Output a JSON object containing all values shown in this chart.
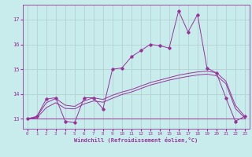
{
  "xlabel": "Windchill (Refroidissement éolien,°C)",
  "bg_color": "#c8ecec",
  "grid_color": "#b0cccc",
  "line_color": "#993399",
  "spine_color": "#993399",
  "xlim": [
    -0.5,
    23.5
  ],
  "ylim": [
    12.6,
    17.6
  ],
  "yticks": [
    13,
    14,
    15,
    16,
    17
  ],
  "xticks": [
    0,
    1,
    2,
    3,
    4,
    5,
    6,
    7,
    8,
    9,
    10,
    11,
    12,
    13,
    14,
    15,
    16,
    17,
    18,
    19,
    20,
    21,
    22,
    23
  ],
  "curve1_x": [
    0,
    1,
    2,
    3,
    4,
    5,
    6,
    7,
    8,
    9,
    10,
    11,
    12,
    13,
    14,
    15,
    16,
    17,
    18,
    19,
    20,
    21,
    22,
    23
  ],
  "curve1_y": [
    13.0,
    13.1,
    13.8,
    13.85,
    12.9,
    12.85,
    13.85,
    13.85,
    13.4,
    15.0,
    15.05,
    15.5,
    15.75,
    16.0,
    15.95,
    15.85,
    17.35,
    16.5,
    17.2,
    15.05,
    14.85,
    13.85,
    12.9,
    13.1
  ],
  "curve2_x": [
    0,
    1,
    2,
    3,
    4,
    5,
    6,
    7,
    8,
    9,
    10,
    11,
    12,
    13,
    14,
    15,
    16,
    17,
    18,
    19,
    20,
    21,
    22,
    23
  ],
  "curve2_y": [
    13.0,
    13.0,
    13.0,
    13.0,
    13.0,
    13.0,
    13.0,
    13.0,
    13.0,
    13.0,
    13.0,
    13.0,
    13.0,
    13.0,
    13.0,
    13.0,
    13.0,
    13.0,
    13.0,
    13.0,
    13.0,
    13.0,
    13.0,
    13.0
  ],
  "curve3_x": [
    0,
    1,
    2,
    3,
    4,
    5,
    6,
    7,
    8,
    9,
    10,
    11,
    12,
    13,
    14,
    15,
    16,
    17,
    18,
    19,
    20,
    21,
    22,
    23
  ],
  "curve3_y": [
    13.0,
    13.08,
    13.65,
    13.82,
    13.55,
    13.5,
    13.72,
    13.85,
    13.78,
    13.95,
    14.08,
    14.18,
    14.32,
    14.46,
    14.56,
    14.66,
    14.76,
    14.83,
    14.89,
    14.92,
    14.86,
    14.52,
    13.55,
    13.1
  ],
  "curve4_x": [
    0,
    1,
    2,
    3,
    4,
    5,
    6,
    7,
    8,
    9,
    10,
    11,
    12,
    13,
    14,
    15,
    16,
    17,
    18,
    19,
    20,
    21,
    22,
    23
  ],
  "curve4_y": [
    13.0,
    13.04,
    13.45,
    13.65,
    13.42,
    13.4,
    13.6,
    13.72,
    13.67,
    13.83,
    13.98,
    14.08,
    14.22,
    14.36,
    14.46,
    14.56,
    14.64,
    14.71,
    14.77,
    14.8,
    14.74,
    14.42,
    13.42,
    13.04
  ]
}
